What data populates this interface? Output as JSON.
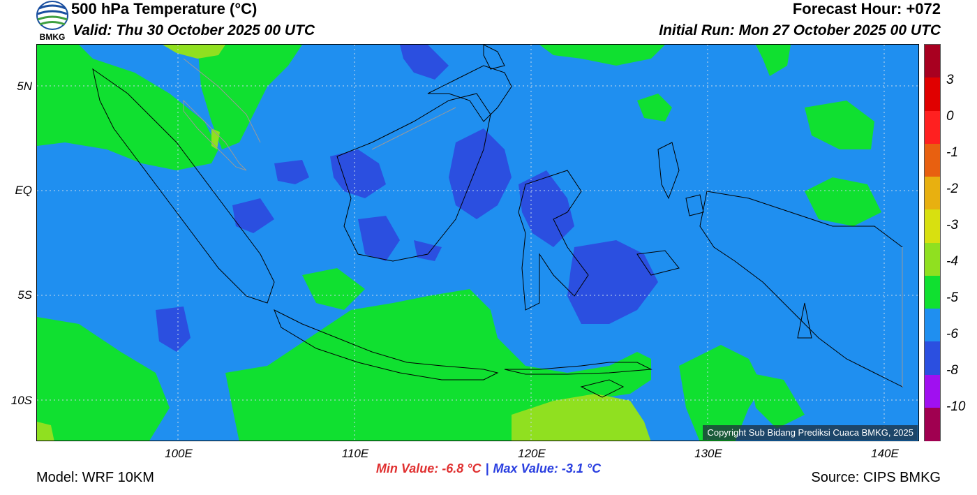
{
  "header": {
    "title": "500 hPa Temperature (°C)",
    "valid": "Valid: Thu 30 October 2025 00 UTC",
    "forecast_hour": "Forecast Hour: +072",
    "initial_run": "Initial Run: Mon 27 October 2025 00 UTC",
    "logo_text": "BMKG"
  },
  "axes": {
    "lat_labels": [
      "5N",
      "EQ",
      "5S",
      "10S"
    ],
    "lon_labels": [
      "100E",
      "110E",
      "120E",
      "130E",
      "140E"
    ]
  },
  "colorbar": {
    "labels": [
      "3",
      "0",
      "-1",
      "-2",
      "-3",
      "-4",
      "-5",
      "-6",
      "-8",
      "-10"
    ],
    "colors": [
      "#a80020",
      "#e00000",
      "#ff2020",
      "#e86010",
      "#e8b010",
      "#d8e010",
      "#90e020",
      "#10e030",
      "#1f8ff0",
      "#2b4fe0",
      "#a010f0",
      "#a00050"
    ]
  },
  "map": {
    "copyright": "Copyright Sub Bidang Prediksi Cuaca BMKG, 2025",
    "colors": {
      "cold": "#2b4fe0",
      "base": "#1f8ff0",
      "warm": "#10e030",
      "warmer": "#90e020"
    }
  },
  "stats": {
    "min": "Min Value: -6.8 °C",
    "separator": "|",
    "max": "Max Value: -3.1 °C"
  },
  "footer": {
    "model": "Model: WRF 10KM",
    "source": "Source: CIPS BMKG"
  }
}
